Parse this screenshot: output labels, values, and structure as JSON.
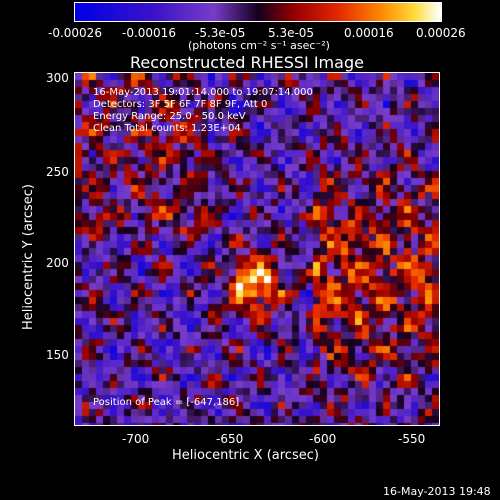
{
  "colorbar": {
    "tick_labels": [
      "-0.00026",
      "-0.00016",
      "-5.3e-05",
      "5.3e-05",
      "0.00016",
      "0.00026"
    ],
    "unit_label": "(photons cm⁻² s⁻¹ asec⁻²)",
    "range": [
      -0.00026,
      0.00026
    ]
  },
  "plot": {
    "title": "Reconstructed RHESSI Image",
    "info_lines": [
      "16-May-2013 19:01:14.000 to 19:07:14.000",
      "Detectors: 3F 5F 6F 7F 8F 9F, Att 0",
      "Energy Range: 25.0 - 50.0 keV",
      "Clean    Total counts: 1.23E+04"
    ],
    "peak_label": "Position of Peak = [-647,186]",
    "peak": {
      "x": -647,
      "y": 186
    },
    "x_ticks": [
      "-700",
      "-650",
      "-600",
      "-550"
    ],
    "y_ticks": [
      "300",
      "250",
      "200",
      "150"
    ],
    "xlabel": "Heliocentric X (arcsec)",
    "ylabel": "Heliocentric Y (arcsec)",
    "xlim": [
      -740,
      -548
    ],
    "ylim": [
      110,
      302
    ]
  },
  "footer": {
    "timestamp": "16-May-2013 19:48"
  }
}
